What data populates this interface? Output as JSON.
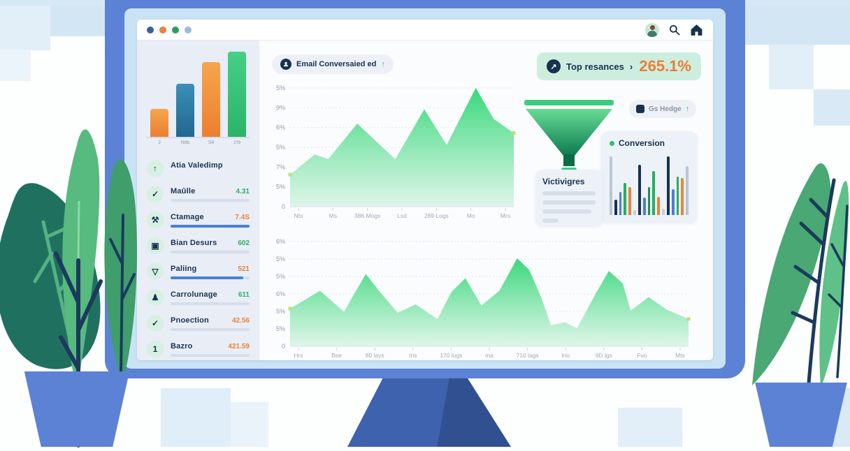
{
  "window": {
    "traffic_dots": [
      "#3a5fa8",
      "#e8833a",
      "#27a05d",
      "#9db9dd"
    ],
    "icons": [
      "avatar",
      "search-icon",
      "home-icon"
    ]
  },
  "sidebar": {
    "items": [
      {
        "icon": "arrow-up",
        "glyph": "↑",
        "label": "Atia Valedimp",
        "value": "",
        "value_color": "",
        "bar": "none"
      },
      {
        "icon": "check",
        "glyph": "✓",
        "label": "Maûlle",
        "value": "4.31",
        "value_color": "#2eaf66",
        "bar": "gray"
      },
      {
        "icon": "tools",
        "glyph": "⚒",
        "label": "Ctamage",
        "value": "7.4S",
        "value_color": "#e8833a",
        "bar": "blue",
        "bar_fill": 100
      },
      {
        "icon": "flag",
        "glyph": "▣",
        "label": "Bian Desurs",
        "value": "602",
        "value_color": "#2eaf66",
        "bar": "gray"
      },
      {
        "icon": "funnel",
        "glyph": "▽",
        "label": "Paliing",
        "value": "521",
        "value_color": "#e8833a",
        "bar": "blue",
        "bar_fill": 92
      },
      {
        "icon": "person",
        "glyph": "♟",
        "label": "Carrolunage",
        "value": "611",
        "value_color": "#2eaf66",
        "bar": "gray"
      },
      {
        "icon": "check",
        "glyph": "✓",
        "label": "Pnoection",
        "value": "42.56",
        "value_color": "#e8833a",
        "bar": "gray"
      },
      {
        "icon": "number-one",
        "glyph": "1",
        "label": "Bazro",
        "value": "421.59",
        "value_color": "#e8833a",
        "bar": "gray"
      }
    ]
  },
  "main": {
    "email_badge": {
      "label": "Email Conversaied ed",
      "trend": "↑"
    },
    "top_badge": {
      "label": "Top resances",
      "chevron": "›",
      "value": "265.1%",
      "arrow": "↗"
    },
    "hedge_badge": {
      "label": "Gs Hedge",
      "trend": "↑"
    },
    "conversion_card": {
      "title": "Conversion"
    },
    "victivigres_card": {
      "title": "Victivigres"
    }
  },
  "colors": {
    "navy": "#16324f",
    "green": "#2dbd70",
    "orange": "#e8833a",
    "area_top": "#2fd674",
    "area_bottom": "#d9f4e5",
    "marker": "#b9e26b"
  },
  "chart_data": [
    {
      "id": "sidebar_mini",
      "type": "bar",
      "categories": [
        "J",
        "Nds",
        "S4",
        "1%"
      ],
      "values": [
        33,
        62,
        88,
        100
      ],
      "colors": [
        [
          "#f6a54e",
          "#ec7f2f"
        ],
        [
          "#3b8fb8",
          "#20688f"
        ],
        [
          "#f6a54e",
          "#ec7f2f"
        ],
        [
          "#45d086",
          "#2bb468"
        ]
      ],
      "title": "",
      "xlabel": "",
      "ylabel": ""
    },
    {
      "id": "area_chart_1",
      "type": "area",
      "title": "",
      "y_ticks": [
        "5%",
        "9%",
        "6%",
        "5%",
        "7%",
        "5%",
        "0"
      ],
      "x_labels": [
        "Nts",
        "Ms",
        "386 Mogs",
        "Lsd",
        "289 Logs",
        "Mo",
        "Mrs"
      ],
      "points": [
        [
          0,
          0.27
        ],
        [
          0.11,
          0.44
        ],
        [
          0.17,
          0.4
        ],
        [
          0.3,
          0.7
        ],
        [
          0.47,
          0.4
        ],
        [
          0.6,
          0.82
        ],
        [
          0.7,
          0.52
        ],
        [
          0.83,
          1.0
        ],
        [
          0.91,
          0.74
        ],
        [
          1.0,
          0.62
        ]
      ],
      "grid": true,
      "legend": false
    },
    {
      "id": "area_chart_2",
      "type": "area",
      "title": "",
      "y_ticks": [
        "6%",
        "5%",
        "5%",
        "6%",
        "5%",
        "5%",
        "0"
      ],
      "x_labels": [
        "Hrs",
        "Bse",
        "80 lays",
        "Iris",
        "170 lugs",
        "ma",
        "710 lags",
        "Irio",
        "9D lgs",
        "Fvo",
        "Mts"
      ],
      "points": [
        [
          0,
          0.36
        ],
        [
          0.075,
          0.53
        ],
        [
          0.135,
          0.33
        ],
        [
          0.19,
          0.69
        ],
        [
          0.225,
          0.52
        ],
        [
          0.27,
          0.32
        ],
        [
          0.315,
          0.4
        ],
        [
          0.37,
          0.26
        ],
        [
          0.405,
          0.52
        ],
        [
          0.44,
          0.65
        ],
        [
          0.48,
          0.39
        ],
        [
          0.525,
          0.53
        ],
        [
          0.57,
          0.84
        ],
        [
          0.6,
          0.73
        ],
        [
          0.63,
          0.47
        ],
        [
          0.655,
          0.2
        ],
        [
          0.69,
          0.23
        ],
        [
          0.72,
          0.17
        ],
        [
          0.765,
          0.49
        ],
        [
          0.8,
          0.72
        ],
        [
          0.835,
          0.6
        ],
        [
          0.855,
          0.34
        ],
        [
          0.9,
          0.47
        ],
        [
          0.945,
          0.35
        ],
        [
          1.0,
          0.26
        ]
      ],
      "grid": true,
      "legend": false
    },
    {
      "id": "conversion_mini",
      "type": "bar",
      "title": "Conversion",
      "bars": [
        {
          "h": 0.95,
          "c": "#b9c6d8"
        },
        {
          "h": 0.25,
          "c": "#16324f"
        },
        {
          "h": 0.38,
          "c": "#4a7fd4"
        },
        {
          "h": 0.52,
          "c": "#27ae60"
        },
        {
          "h": 0.45,
          "c": "#e8833a"
        },
        {
          "h": 0.08,
          "c": "#c6cfdd"
        },
        {
          "h": 0.82,
          "c": "#16324f"
        },
        {
          "h": 0.28,
          "c": "#4a7fd4"
        },
        {
          "h": 0.45,
          "c": "#1e8f57"
        },
        {
          "h": 0.72,
          "c": "#27ae60"
        },
        {
          "h": 0.3,
          "c": "#e8833a"
        },
        {
          "h": 0.1,
          "c": "#c6cfdd"
        },
        {
          "h": 0.95,
          "c": "#16324f"
        },
        {
          "h": 0.42,
          "c": "#4a7fd4"
        },
        {
          "h": 0.62,
          "c": "#27ae60"
        },
        {
          "h": 0.6,
          "c": "#e8833a"
        },
        {
          "h": 0.8,
          "c": "#b9c6d8"
        }
      ]
    }
  ]
}
